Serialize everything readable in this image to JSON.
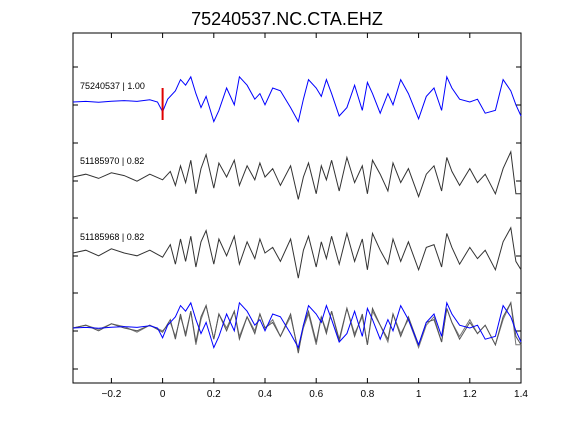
{
  "title": "75240537.NC.CTA.EHZ",
  "chart_data": {
    "type": "line",
    "title": "75240537.NC.CTA.EHZ",
    "xlabel": "",
    "ylabel": "",
    "xlim": [
      -0.35,
      1.4
    ],
    "x_ticks": [
      -0.2,
      0,
      0.2,
      0.4,
      0.6,
      0.8,
      1,
      1.2,
      1.4
    ],
    "x_tick_labels": [
      "−0.2",
      "0",
      "0.2",
      "0.4",
      "0.6",
      "0.8",
      "1",
      "1.2",
      "1.4"
    ],
    "grid": false,
    "pick_marker": {
      "x": 0,
      "color": "#e00000"
    },
    "traces": [
      {
        "label": "75240537 | 1.00",
        "color": "#0000ff",
        "x": [
          -0.35,
          -0.3,
          -0.25,
          -0.2,
          -0.15,
          -0.1,
          -0.05,
          -0.02,
          0,
          0.02,
          0.05,
          0.07,
          0.09,
          0.11,
          0.13,
          0.15,
          0.17,
          0.2,
          0.22,
          0.25,
          0.28,
          0.3,
          0.33,
          0.36,
          0.38,
          0.4,
          0.43,
          0.46,
          0.5,
          0.53,
          0.55,
          0.57,
          0.6,
          0.62,
          0.64,
          0.66,
          0.69,
          0.72,
          0.75,
          0.78,
          0.8,
          0.82,
          0.85,
          0.88,
          0.9,
          0.93,
          0.96,
          1.0,
          1.03,
          1.06,
          1.09,
          1.11,
          1.13,
          1.16,
          1.2,
          1.23,
          1.26,
          1.3,
          1.33,
          1.36,
          1.38,
          1.4
        ],
        "y": [
          0.0,
          0.02,
          -0.01,
          0.03,
          0.05,
          0.02,
          0.08,
          0.0,
          -0.35,
          0.1,
          0.4,
          0.8,
          0.6,
          0.9,
          0.3,
          -0.2,
          0.2,
          -0.7,
          -0.3,
          0.5,
          -0.1,
          0.9,
          0.6,
          0.1,
          0.3,
          -0.1,
          0.5,
          0.4,
          -0.2,
          -0.7,
          0.1,
          0.8,
          0.5,
          0.2,
          0.8,
          0.3,
          -0.5,
          -0.2,
          0.6,
          -0.3,
          0.7,
          0.3,
          -0.4,
          0.3,
          -0.1,
          0.8,
          0.3,
          -0.6,
          0.2,
          0.5,
          -0.3,
          0.9,
          0.5,
          0.1,
          0.0,
          0.1,
          -0.4,
          -0.3,
          0.8,
          0.4,
          -0.1,
          -0.5
        ]
      },
      {
        "label": "51185970 | 0.82",
        "color": "#333333",
        "x": [
          -0.35,
          -0.3,
          -0.25,
          -0.2,
          -0.15,
          -0.1,
          -0.05,
          0,
          0.03,
          0.05,
          0.07,
          0.09,
          0.11,
          0.13,
          0.15,
          0.17,
          0.2,
          0.22,
          0.25,
          0.28,
          0.3,
          0.33,
          0.36,
          0.38,
          0.4,
          0.43,
          0.46,
          0.5,
          0.53,
          0.55,
          0.57,
          0.6,
          0.62,
          0.64,
          0.66,
          0.69,
          0.72,
          0.75,
          0.78,
          0.8,
          0.82,
          0.85,
          0.88,
          0.9,
          0.93,
          0.96,
          1.0,
          1.03,
          1.06,
          1.09,
          1.11,
          1.13,
          1.16,
          1.2,
          1.23,
          1.26,
          1.3,
          1.33,
          1.36,
          1.38,
          1.4
        ],
        "y": [
          0.0,
          0.1,
          -0.05,
          0.15,
          0.05,
          -0.15,
          0.1,
          -0.1,
          0.2,
          -0.3,
          0.4,
          -0.2,
          0.6,
          -0.6,
          0.3,
          0.8,
          -0.4,
          0.5,
          0.0,
          0.6,
          -0.3,
          0.4,
          -0.1,
          0.5,
          0.0,
          0.3,
          -0.3,
          0.4,
          -0.8,
          0.0,
          0.5,
          -0.6,
          0.4,
          -0.1,
          0.6,
          -0.5,
          0.7,
          -0.2,
          0.4,
          -0.6,
          0.6,
          0.1,
          -0.5,
          0.5,
          -0.2,
          0.3,
          -0.7,
          0.1,
          0.4,
          -0.5,
          0.7,
          0.2,
          -0.3,
          0.3,
          -0.2,
          0.1,
          -0.6,
          0.3,
          0.9,
          -0.6,
          -0.6
        ]
      },
      {
        "label": "51185968 | 0.82",
        "color": "#333333",
        "x": [
          -0.35,
          -0.3,
          -0.25,
          -0.2,
          -0.15,
          -0.1,
          -0.05,
          0,
          0.03,
          0.05,
          0.07,
          0.09,
          0.11,
          0.13,
          0.15,
          0.17,
          0.2,
          0.22,
          0.25,
          0.28,
          0.3,
          0.33,
          0.36,
          0.38,
          0.4,
          0.43,
          0.46,
          0.5,
          0.53,
          0.55,
          0.57,
          0.6,
          0.62,
          0.64,
          0.66,
          0.69,
          0.72,
          0.75,
          0.78,
          0.8,
          0.82,
          0.85,
          0.88,
          0.9,
          0.93,
          0.96,
          1.0,
          1.03,
          1.06,
          1.09,
          1.11,
          1.13,
          1.16,
          1.2,
          1.23,
          1.26,
          1.3,
          1.33,
          1.36,
          1.38,
          1.4
        ],
        "y": [
          0.0,
          0.1,
          -0.1,
          0.15,
          0.0,
          -0.1,
          0.1,
          -0.15,
          0.3,
          -0.4,
          0.5,
          -0.3,
          0.6,
          -0.5,
          0.4,
          0.8,
          -0.4,
          0.5,
          -0.1,
          0.6,
          -0.4,
          0.4,
          -0.2,
          0.5,
          0.0,
          0.2,
          -0.3,
          0.5,
          -0.9,
          0.1,
          0.6,
          -0.5,
          0.4,
          -0.2,
          0.6,
          -0.4,
          0.7,
          -0.3,
          0.5,
          -0.6,
          0.7,
          0.1,
          -0.4,
          0.5,
          -0.3,
          0.4,
          -0.6,
          0.2,
          0.3,
          -0.5,
          0.7,
          0.2,
          -0.4,
          0.2,
          -0.2,
          0.1,
          -0.6,
          0.4,
          0.9,
          -0.3,
          -0.6
        ]
      }
    ]
  }
}
